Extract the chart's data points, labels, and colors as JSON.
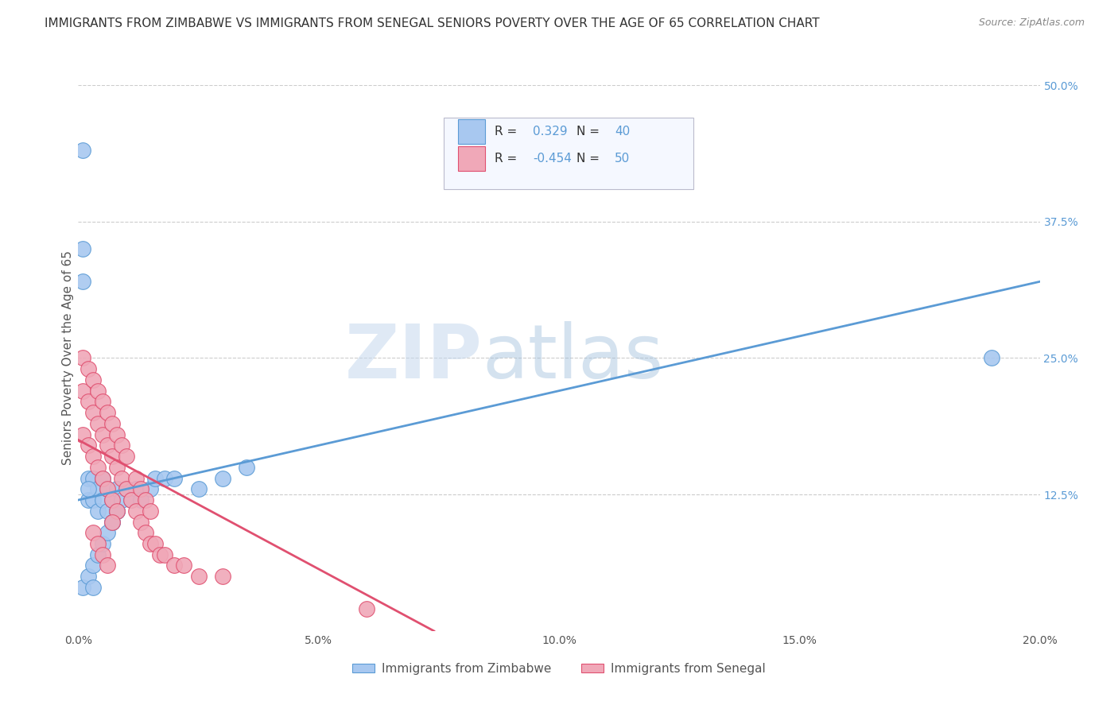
{
  "title": "IMMIGRANTS FROM ZIMBABWE VS IMMIGRANTS FROM SENEGAL SENIORS POVERTY OVER THE AGE OF 65 CORRELATION CHART",
  "source": "Source: ZipAtlas.com",
  "ylabel": "Seniors Poverty Over the Age of 65",
  "xlabel_zimbabwe": "Immigrants from Zimbabwe",
  "xlabel_senegal": "Immigrants from Senegal",
  "xlim": [
    0.0,
    0.2
  ],
  "ylim": [
    0.0,
    0.5
  ],
  "xtick_labels": [
    "0.0%",
    "5.0%",
    "10.0%",
    "15.0%",
    "20.0%"
  ],
  "xtick_values": [
    0.0,
    0.05,
    0.1,
    0.15,
    0.2
  ],
  "ytick_labels": [
    "12.5%",
    "25.0%",
    "37.5%",
    "50.0%"
  ],
  "ytick_values": [
    0.125,
    0.25,
    0.375,
    0.5
  ],
  "R_zimbabwe": 0.329,
  "N_zimbabwe": 40,
  "R_senegal": -0.454,
  "N_senegal": 50,
  "color_zimbabwe": "#a8c8f0",
  "color_senegal": "#f0a8b8",
  "line_color_zimbabwe": "#5b9bd5",
  "line_color_senegal": "#e05070",
  "background_color": "#ffffff",
  "watermark_zip": "ZIP",
  "watermark_atlas": "atlas",
  "title_fontsize": 11,
  "label_fontsize": 11,
  "tick_fontsize": 10,
  "zimbabwe_x": [
    0.001,
    0.001,
    0.002,
    0.002,
    0.003,
    0.003,
    0.004,
    0.004,
    0.005,
    0.005,
    0.006,
    0.006,
    0.007,
    0.007,
    0.008,
    0.008,
    0.009,
    0.01,
    0.011,
    0.012,
    0.013,
    0.015,
    0.016,
    0.018,
    0.02,
    0.025,
    0.03,
    0.035,
    0.001,
    0.002,
    0.003,
    0.004,
    0.005,
    0.006,
    0.007,
    0.008,
    0.001,
    0.002,
    0.19,
    0.003
  ],
  "zimbabwe_y": [
    0.44,
    0.35,
    0.14,
    0.12,
    0.14,
    0.12,
    0.13,
    0.11,
    0.14,
    0.12,
    0.13,
    0.11,
    0.12,
    0.1,
    0.13,
    0.11,
    0.12,
    0.13,
    0.12,
    0.13,
    0.12,
    0.13,
    0.14,
    0.14,
    0.14,
    0.13,
    0.14,
    0.15,
    0.04,
    0.05,
    0.06,
    0.07,
    0.08,
    0.09,
    0.1,
    0.11,
    0.32,
    0.13,
    0.25,
    0.04
  ],
  "senegal_x": [
    0.001,
    0.001,
    0.002,
    0.002,
    0.003,
    0.003,
    0.004,
    0.004,
    0.005,
    0.005,
    0.006,
    0.006,
    0.007,
    0.007,
    0.008,
    0.008,
    0.009,
    0.01,
    0.011,
    0.012,
    0.013,
    0.014,
    0.015,
    0.016,
    0.017,
    0.018,
    0.02,
    0.022,
    0.025,
    0.03,
    0.001,
    0.002,
    0.003,
    0.004,
    0.005,
    0.006,
    0.007,
    0.008,
    0.009,
    0.01,
    0.012,
    0.013,
    0.014,
    0.015,
    0.003,
    0.004,
    0.005,
    0.006,
    0.06,
    0.007
  ],
  "senegal_y": [
    0.22,
    0.18,
    0.21,
    0.17,
    0.2,
    0.16,
    0.19,
    0.15,
    0.18,
    0.14,
    0.17,
    0.13,
    0.16,
    0.12,
    0.15,
    0.11,
    0.14,
    0.13,
    0.12,
    0.11,
    0.1,
    0.09,
    0.08,
    0.08,
    0.07,
    0.07,
    0.06,
    0.06,
    0.05,
    0.05,
    0.25,
    0.24,
    0.23,
    0.22,
    0.21,
    0.2,
    0.19,
    0.18,
    0.17,
    0.16,
    0.14,
    0.13,
    0.12,
    0.11,
    0.09,
    0.08,
    0.07,
    0.06,
    0.02,
    0.1
  ],
  "zim_line_x": [
    0.0,
    0.2
  ],
  "zim_line_y": [
    0.12,
    0.32
  ],
  "sen_line_x": [
    0.0,
    0.074
  ],
  "sen_line_y": [
    0.175,
    0.0
  ]
}
